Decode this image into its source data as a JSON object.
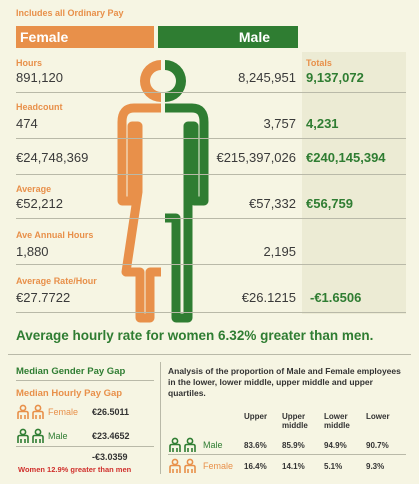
{
  "header": {
    "note": "Includes all Ordinary Pay",
    "female_label": "Female",
    "male_label": "Male",
    "totals_label": "Totals"
  },
  "rows": {
    "hours": {
      "label": "Hours",
      "female": "891,120",
      "male": "8,245,951",
      "total": "9,137,072"
    },
    "headcount": {
      "label": "Headcount",
      "female": "474",
      "male": "3,757",
      "total": "4,231"
    },
    "pay": {
      "female": "€24,748,369",
      "male": "€215,397,026",
      "total": "€240,145,394"
    },
    "average": {
      "label": "Average",
      "female": "€52,212",
      "male": "€57,332",
      "total": "€56,759"
    },
    "annual_hours": {
      "label": "Ave Annual Hours",
      "female": "1,880",
      "male": "2,195"
    },
    "rate": {
      "label": "Average Rate/Hour",
      "female": "€27.7722",
      "male": "€26.1215",
      "total": "-€1.6506"
    }
  },
  "headline": "Average hourly rate for women 6.32% greater than men.",
  "median": {
    "title": "Median Gender Pay Gap",
    "subtitle": "Median Hourly Pay Gap",
    "female_label": "Female",
    "female_value": "€26.5011",
    "male_label": "Male",
    "male_value": "€23.4652",
    "difference": "-€3.0359",
    "note": "Women 12.9% greater than men"
  },
  "quartiles": {
    "description": "Analysis of the proportion of Male and Female employees in the lower, lower middle, upper middle and upper quartiles.",
    "columns": [
      "Upper",
      "Upper middle",
      "Lower middle",
      "Lower"
    ],
    "male_label": "Male",
    "male_values": [
      "83.6%",
      "85.9%",
      "94.9%",
      "90.7%"
    ],
    "female_label": "Female",
    "female_values": [
      "16.4%",
      "14.1%",
      "5.1%",
      "9.3%"
    ]
  },
  "colors": {
    "orange": "#e8904a",
    "green": "#2f7d32",
    "background": "#f6f5e3"
  }
}
